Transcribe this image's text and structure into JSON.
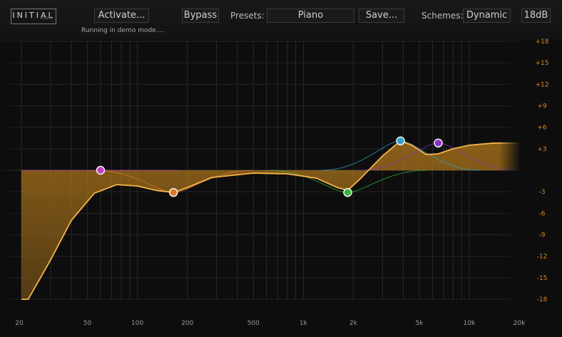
{
  "header": {
    "logo": "INITIAL",
    "logo_sub": "AUDIO",
    "activate_label": "Activate...",
    "demo_text": "Running in demo mode....",
    "bypass_label": "Bypass",
    "presets_label": "Presets:",
    "preset_value": "Piano",
    "save_label": "Save...",
    "schemes_label": "Schemes:",
    "scheme_value": "Dynamic",
    "range_label": "18dB"
  },
  "chart_data": {
    "type": "line",
    "x_scale": "log",
    "xlim": [
      20,
      20000
    ],
    "ylim": [
      -18,
      18
    ],
    "x_ticks": [
      20,
      50,
      100,
      200,
      500,
      1000,
      2000,
      5000,
      10000,
      20000
    ],
    "x_tick_labels": [
      "20",
      "50",
      "100",
      "200",
      "500",
      "1k",
      "2k",
      "5k",
      "10k",
      "20k"
    ],
    "y_ticks": [
      18,
      15,
      12,
      9,
      6,
      3,
      -3,
      -6,
      -9,
      -12,
      -15,
      -18
    ],
    "y_tick_labels": [
      "+18",
      "+15",
      "+12",
      "+9",
      "+6",
      "+3",
      "-3",
      "-6",
      "-9",
      "-12",
      "-15",
      "-18"
    ],
    "grid": true,
    "bands": [
      {
        "freq": 60,
        "gain": 0,
        "color": "#c23fc8"
      },
      {
        "freq": 165,
        "gain": -3.1,
        "color": "#d97a26"
      },
      {
        "freq": 1850,
        "gain": -3.1,
        "color": "#3bb33b"
      },
      {
        "freq": 3850,
        "gain": 4.1,
        "color": "#33a3c6"
      },
      {
        "freq": 6500,
        "gain": 3.8,
        "color": "#8c2fc8"
      }
    ],
    "curve": [
      [
        20,
        -18
      ],
      [
        22,
        -18
      ],
      [
        30,
        -12.5
      ],
      [
        40,
        -7
      ],
      [
        55,
        -3.2
      ],
      [
        75,
        -2
      ],
      [
        100,
        -2.2
      ],
      [
        130,
        -2.8
      ],
      [
        165,
        -3.1
      ],
      [
        200,
        -2.4
      ],
      [
        280,
        -1
      ],
      [
        500,
        -0.4
      ],
      [
        800,
        -0.5
      ],
      [
        1200,
        -1.1
      ],
      [
        1600,
        -2.4
      ],
      [
        1850,
        -2.8
      ],
      [
        2200,
        -1.2
      ],
      [
        3000,
        2
      ],
      [
        3850,
        4.1
      ],
      [
        4500,
        3.5
      ],
      [
        5500,
        2.2
      ],
      [
        6500,
        2.3
      ],
      [
        8000,
        3
      ],
      [
        10000,
        3.5
      ],
      [
        14000,
        3.8
      ],
      [
        20000,
        3.8
      ]
    ]
  }
}
